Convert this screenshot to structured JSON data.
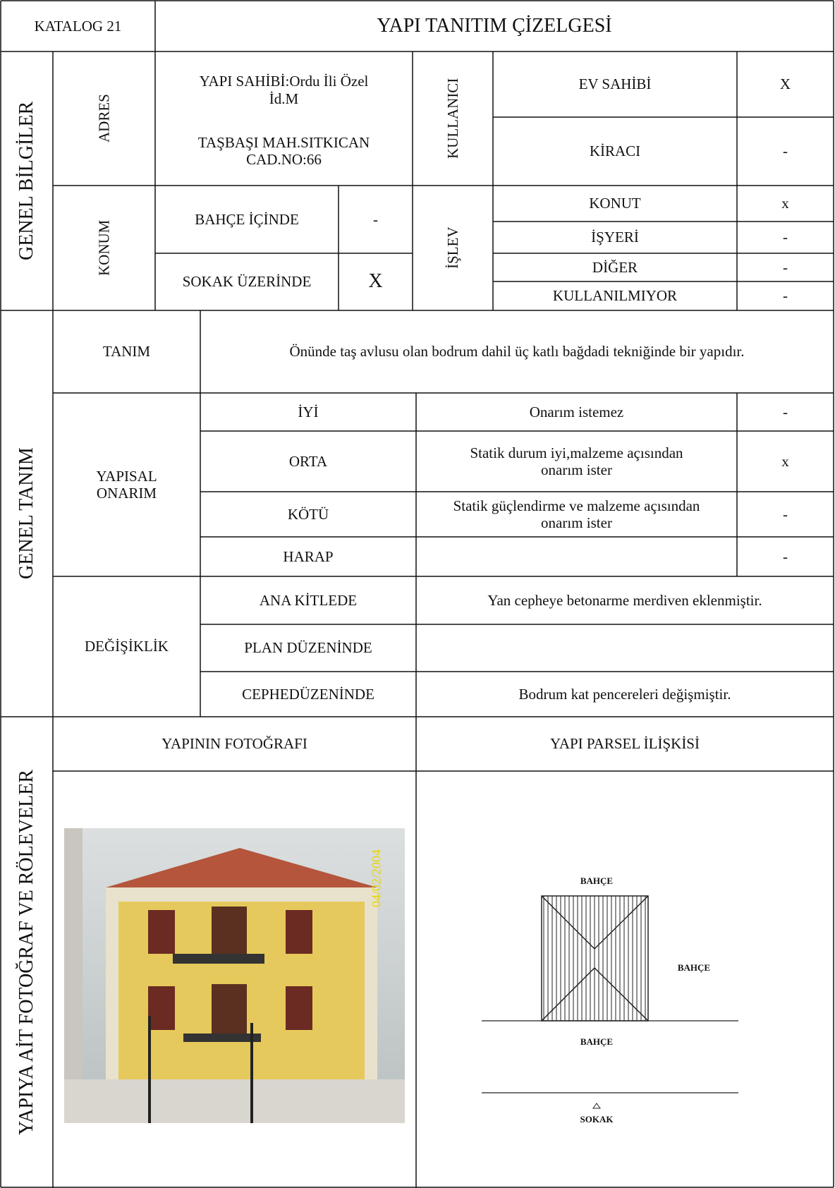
{
  "header": {
    "catalog": "KATALOG 21",
    "title": "YAPI TANITIM ÇİZELGESİ"
  },
  "general_info": {
    "section": "GENEL BİLGİLER",
    "address_label": "ADRES",
    "owner": "YAPI SAHİBİ:Ordu İli Özel İd.M",
    "address": "TAŞBAŞI MAH.SITKICAN CAD.NO:66",
    "user_label": "KULLANICI",
    "users": [
      {
        "label": "EV SAHİBİ",
        "mark": "X"
      },
      {
        "label": "KİRACI",
        "mark": "-"
      }
    ],
    "location_label": "KONUM",
    "locations": [
      {
        "label": "BAHÇE İÇİNDE",
        "mark": "-"
      },
      {
        "label": "SOKAK ÜZERİNDE",
        "mark": "X"
      }
    ],
    "function_label": "İŞLEV",
    "functions": [
      {
        "label": "KONUT",
        "mark": "x"
      },
      {
        "label": "İŞYERİ",
        "mark": "-"
      },
      {
        "label": "DİĞER",
        "mark": "-"
      },
      {
        "label": "KULLANILMIYOR",
        "mark": "-"
      }
    ]
  },
  "general_description": {
    "section": "GENEL TANIM",
    "definition_label": "TANIM",
    "definition": "Önünde taş avlusu olan bodrum dahil üç katlı bağdadi tekniğinde bir yapıdır.",
    "structural_label": "YAPISAL ONARIM",
    "conditions": [
      {
        "label": "İYİ",
        "note": "Onarım istemez",
        "mark": "-"
      },
      {
        "label": "ORTA",
        "note": "Statik durum iyi,malzeme açısından onarım ister",
        "mark": "x"
      },
      {
        "label": "KÖTÜ",
        "note": "Statik güçlendirme ve malzeme açısından onarım ister",
        "mark": "-"
      },
      {
        "label": "HARAP",
        "mark": "-"
      }
    ],
    "change_label": "DEĞİŞİKLİK",
    "changes": [
      {
        "label": "ANA KİTLEDE",
        "note": "Yan cepheye betonarme merdiven eklenmiştir."
      },
      {
        "label": "PLAN DÜZENİNDE"
      },
      {
        "label": "CEPHEDÜZENİNDE",
        "note": "Bodrum kat pencereleri değişmiştir."
      }
    ]
  },
  "photos": {
    "section": "YAPIYA AİT FOTOĞRAF VE RÖLEVELER",
    "photo_title": "YAPININ FOTOĞRAFI",
    "parcel_title": "YAPI PARSEL İLİŞKİSİ",
    "date_stamp": "04/02/2004",
    "parcel_labels": [
      "BAHÇE",
      "BAHÇE",
      "BAHÇE",
      "SOKAK"
    ]
  }
}
